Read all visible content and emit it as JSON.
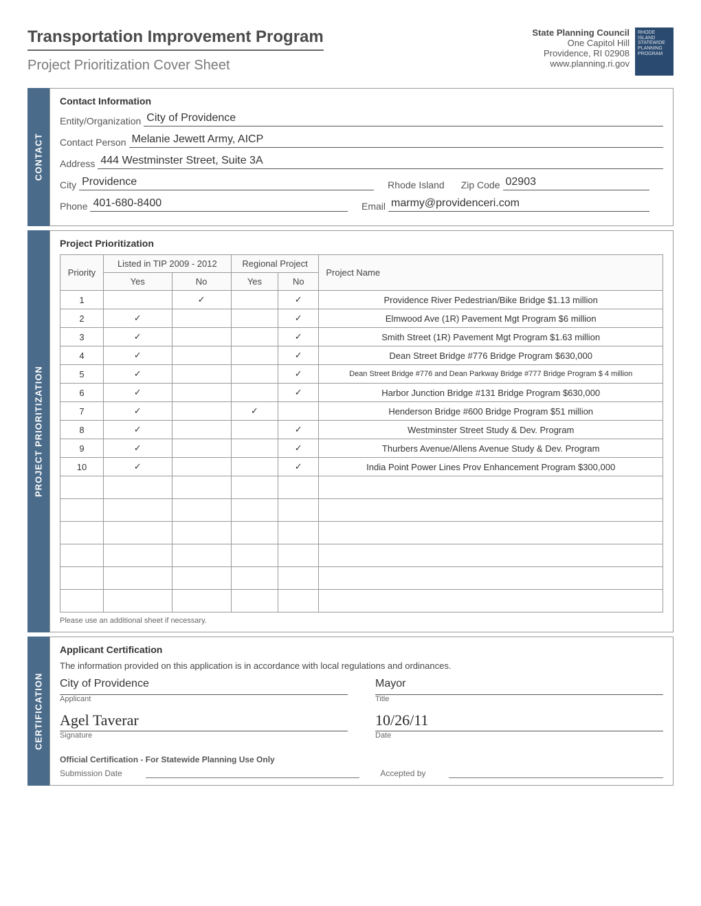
{
  "header": {
    "title": "Transportation Improvement Program",
    "subtitle": "Project Prioritization Cover Sheet",
    "council": "State Planning Council",
    "addr1": "One Capitol Hill",
    "addr2": "Providence, RI 02908",
    "web": "www.planning.ri.gov",
    "logo_line1": "RHODE ISLAND",
    "logo_line2": "STATEWIDE",
    "logo_line3": "PLANNING",
    "logo_line4": "PROGRAM"
  },
  "contact": {
    "tab": "CONTACT",
    "section_title": "Contact Information",
    "entity_label": "Entity/Organization",
    "entity_value": "City of Providence",
    "person_label": "Contact Person",
    "person_value": "Melanie Jewett Army, AICP",
    "address_label": "Address",
    "address_value": "444 Westminster Street, Suite 3A",
    "city_label": "City",
    "city_value": "Providence",
    "state_label": "Rhode Island",
    "zip_label": "Zip Code",
    "zip_value": "02903",
    "phone_label": "Phone",
    "phone_value": "401-680-8400",
    "email_label": "Email",
    "email_value": "marmy@providenceri.com"
  },
  "prioritization": {
    "tab": "PROJECT PRIORITIZATION",
    "section_title": "Project Prioritization",
    "columns": {
      "priority": "Priority",
      "tip": "Listed in TIP 2009 - 2012",
      "regional": "Regional Project",
      "yes": "Yes",
      "no": "No",
      "name": "Project Name"
    },
    "rows": [
      {
        "priority": "1",
        "tip_yes": "",
        "tip_no": "✓",
        "reg_yes": "",
        "reg_no": "✓",
        "name": "Providence River Pedestrian/Bike Bridge $1.13 million",
        "small": false
      },
      {
        "priority": "2",
        "tip_yes": "✓",
        "tip_no": "",
        "reg_yes": "",
        "reg_no": "✓",
        "name": "Elmwood Ave (1R) Pavement Mgt Program $6 million",
        "small": false
      },
      {
        "priority": "3",
        "tip_yes": "✓",
        "tip_no": "",
        "reg_yes": "",
        "reg_no": "✓",
        "name": "Smith Street (1R) Pavement Mgt Program  $1.63 million",
        "small": false
      },
      {
        "priority": "4",
        "tip_yes": "✓",
        "tip_no": "",
        "reg_yes": "",
        "reg_no": "✓",
        "name": "Dean Street Bridge #776 Bridge Program $630,000",
        "small": false
      },
      {
        "priority": "5",
        "tip_yes": "✓",
        "tip_no": "",
        "reg_yes": "",
        "reg_no": "✓",
        "name": "Dean Street Bridge #776 and Dean Parkway Bridge #777 Bridge Program $ 4 million",
        "small": true
      },
      {
        "priority": "6",
        "tip_yes": "✓",
        "tip_no": "",
        "reg_yes": "",
        "reg_no": "✓",
        "name": "Harbor Junction Bridge #131 Bridge Program $630,000",
        "small": false
      },
      {
        "priority": "7",
        "tip_yes": "✓",
        "tip_no": "",
        "reg_yes": "✓",
        "reg_no": "",
        "name": "Henderson Bridge #600 Bridge Program $51 million",
        "small": false
      },
      {
        "priority": "8",
        "tip_yes": "✓",
        "tip_no": "",
        "reg_yes": "",
        "reg_no": "✓",
        "name": "Westminster Street Study & Dev. Program",
        "small": false
      },
      {
        "priority": "9",
        "tip_yes": "✓",
        "tip_no": "",
        "reg_yes": "",
        "reg_no": "✓",
        "name": "Thurbers Avenue/Allens Avenue Study & Dev. Program",
        "small": false
      },
      {
        "priority": "10",
        "tip_yes": "✓",
        "tip_no": "",
        "reg_yes": "",
        "reg_no": "✓",
        "name": "India Point Power Lines Prov   Enhancement Program $300,000",
        "small": false
      }
    ],
    "empty_rows": 6,
    "footnote": "Please use an additional sheet if necessary."
  },
  "certification": {
    "tab": "CERTIFICATION",
    "section_title": "Applicant Certification",
    "text": "The information provided on this application is in accordance with local regulations and ordinances.",
    "applicant_value": "City of Providence",
    "applicant_sub": "Applicant",
    "title_value": "Mayor",
    "title_sub": "Title",
    "signature_value": "Agel Taverar",
    "signature_sub": "Signature",
    "date_value": "10/26/11",
    "date_sub": "Date",
    "official_title": "Official Certification - For Statewide Planning Use Only",
    "submission_label": "Submission Date",
    "accepted_label": "Accepted by"
  },
  "style": {
    "tab_bg": "#4a6b8a",
    "border": "#999999"
  }
}
